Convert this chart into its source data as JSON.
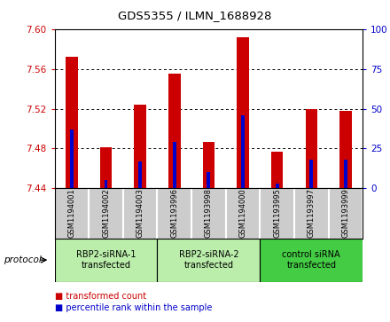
{
  "title": "GDS5355 / ILMN_1688928",
  "samples": [
    "GSM1194001",
    "GSM1194002",
    "GSM1194003",
    "GSM1193996",
    "GSM1193998",
    "GSM1194000",
    "GSM1193995",
    "GSM1193997",
    "GSM1193999"
  ],
  "red_values": [
    7.572,
    7.481,
    7.524,
    7.555,
    7.487,
    7.592,
    7.477,
    7.52,
    7.518
  ],
  "blue_values_pct": [
    37,
    5,
    17,
    29,
    10,
    46,
    3,
    18,
    18
  ],
  "ylim_left": [
    7.44,
    7.6
  ],
  "ylim_right": [
    0,
    100
  ],
  "yticks_left": [
    7.44,
    7.48,
    7.52,
    7.56,
    7.6
  ],
  "yticks_right": [
    0,
    25,
    50,
    75,
    100
  ],
  "base_value": 7.44,
  "groups": [
    {
      "label": "RBP2-siRNA-1\ntransfected",
      "start": 0,
      "end": 3,
      "color": "#bbeeaa"
    },
    {
      "label": "RBP2-siRNA-2\ntransfected",
      "start": 3,
      "end": 6,
      "color": "#bbeeaa"
    },
    {
      "label": "control siRNA\ntransfected",
      "start": 6,
      "end": 9,
      "color": "#44cc44"
    }
  ],
  "red_bar_width": 0.35,
  "blue_bar_width": 0.1,
  "red_color": "#cc0000",
  "blue_color": "#0000cc",
  "tick_color_left": "#cc0000",
  "tick_color_right": "#0000cc",
  "plot_bg": "#ffffff",
  "sample_bg": "#cccccc",
  "legend_red": "transformed count",
  "legend_blue": "percentile rank within the sample",
  "protocol_label": "protocol"
}
